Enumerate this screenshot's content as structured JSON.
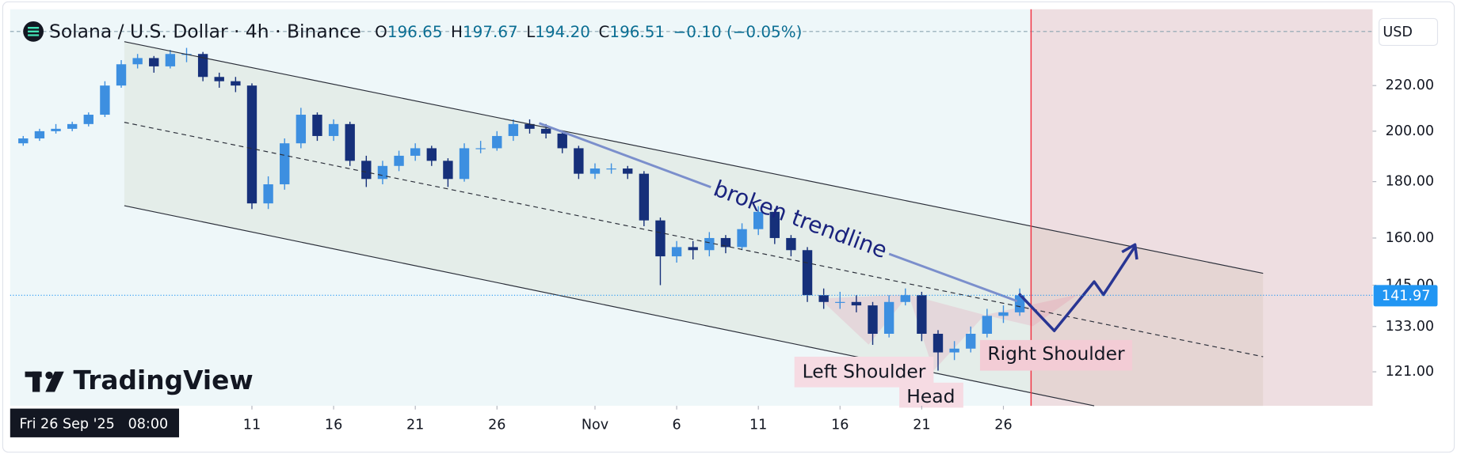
{
  "chart_data": {
    "type": "candlestick",
    "title": "Solana / U.S. Dollar · 4h · Binance",
    "ohlc_header": {
      "open_label": "O",
      "open": "196.65",
      "high_label": "H",
      "high": "197.67",
      "low_label": "L",
      "low": "194.20",
      "close_label": "C",
      "close": "196.51",
      "change": "−0.10 (−0.05%)"
    },
    "currency": "USD",
    "x": [
      -4,
      -3,
      -2,
      -1,
      0,
      1,
      2,
      3,
      4,
      5,
      6,
      7,
      8,
      9,
      10,
      11,
      12,
      13,
      14,
      15,
      16,
      17,
      18,
      19,
      20,
      21,
      22,
      23,
      24,
      25,
      26,
      27,
      28,
      29,
      30,
      31,
      32,
      33,
      34,
      35,
      36,
      37,
      38,
      39,
      40,
      41,
      42,
      43,
      44,
      45,
      46,
      47,
      48,
      49,
      50,
      51,
      52,
      53,
      54,
      55,
      56,
      57
    ],
    "open": [
      195,
      197,
      200,
      201,
      203,
      207,
      220,
      230,
      233,
      229,
      235,
      235,
      224,
      222,
      220,
      172,
      179,
      195,
      207,
      198,
      203,
      188,
      181,
      186,
      190,
      193,
      188,
      181,
      193,
      193,
      198,
      203,
      201,
      199,
      193,
      183,
      185,
      185,
      183,
      166,
      154,
      157,
      156,
      160,
      157,
      163,
      169,
      160,
      156,
      142,
      140,
      140,
      139,
      131,
      140,
      142,
      131,
      126,
      127,
      131,
      136,
      137
    ],
    "high": [
      198,
      201,
      203,
      204,
      208,
      222,
      232,
      235,
      234,
      237,
      238,
      236,
      226,
      224,
      221,
      182,
      197,
      210,
      208,
      205,
      204,
      190,
      188,
      192,
      195,
      194,
      189,
      195,
      196,
      200,
      205,
      205,
      203,
      200,
      194,
      187,
      187,
      186,
      184,
      167,
      159,
      159,
      162,
      161,
      165,
      171,
      170,
      161,
      157,
      144,
      143,
      142,
      140,
      142,
      144,
      143,
      132,
      129,
      133,
      138,
      139,
      144
    ],
    "low": [
      194,
      196,
      199,
      200,
      202,
      206,
      219,
      228,
      226,
      228,
      231,
      222,
      219,
      217,
      170,
      170,
      177,
      193,
      196,
      196,
      186,
      178,
      179,
      184,
      188,
      186,
      178,
      180,
      191,
      192,
      196,
      199,
      197,
      191,
      181,
      181,
      183,
      181,
      164,
      145,
      152,
      153,
      154,
      155,
      156,
      161,
      158,
      154,
      140,
      138,
      138,
      137,
      128,
      130,
      139,
      129,
      121.3,
      124,
      126,
      130,
      134,
      136
    ],
    "close": [
      197,
      200,
      201,
      203,
      207,
      220,
      230,
      233,
      229,
      235,
      235,
      224,
      222,
      220,
      172,
      179,
      195,
      207,
      198,
      203,
      188,
      181,
      186,
      190,
      193,
      188,
      181,
      193,
      193,
      198,
      203,
      201,
      199,
      193,
      183,
      185,
      185,
      183,
      166,
      154,
      157,
      156,
      160,
      157,
      163,
      169,
      160,
      156,
      142,
      140,
      140,
      139,
      131,
      140,
      142,
      131,
      126,
      127,
      131,
      136,
      137,
      141.97
    ],
    "up_color": "#3d8fe0",
    "down_color": "#16307a",
    "xlim": [
      -4.8,
      78.6
    ],
    "xticks": [
      {
        "value": 10,
        "label": "11"
      },
      {
        "value": 15,
        "label": "16"
      },
      {
        "value": 20,
        "label": "21"
      },
      {
        "value": 25,
        "label": "26"
      },
      {
        "value": 31,
        "label": "Nov"
      },
      {
        "value": 36,
        "label": "6"
      },
      {
        "value": 41,
        "label": "11"
      },
      {
        "value": 46,
        "label": "16"
      },
      {
        "value": 51,
        "label": "21"
      },
      {
        "value": 56,
        "label": "26"
      }
    ],
    "ylim": [
      112.7,
      258
    ],
    "yticks": [
      {
        "value": 121,
        "label": "121.00"
      },
      {
        "value": 133,
        "label": "133.00"
      },
      {
        "value": 145,
        "label": "145.00"
      },
      {
        "value": 160,
        "label": "160.00"
      },
      {
        "value": 180,
        "label": "180.00"
      },
      {
        "value": 200,
        "label": "200.00"
      },
      {
        "value": 220,
        "label": "220.00"
      }
    ],
    "log_scale": true,
    "grid": false,
    "last_price": 141.97,
    "last_price_color": "#2196f3",
    "crosshair_date": "Fri 26 Sep '25",
    "crosshair_time": "08:00",
    "annotations": {
      "trendline": "broken trendline",
      "left_shoulder": "Left Shoulder",
      "head": "Head",
      "right_shoulder": "Right Shoulder"
    },
    "watermark": "TradingView"
  }
}
